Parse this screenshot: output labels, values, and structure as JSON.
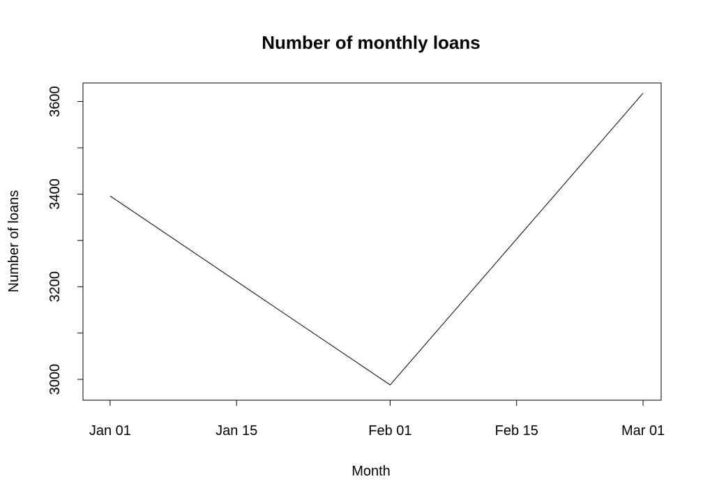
{
  "chart_data": {
    "type": "line",
    "title": "Number of monthly loans",
    "xlabel": "Month",
    "ylabel": "Number of loans",
    "x": [
      "2023-01-01",
      "2023-02-01",
      "2023-03-01"
    ],
    "series": [
      {
        "values": [
          3396,
          2988,
          3618
        ]
      }
    ],
    "xlim": [
      "2022-12-29",
      "2023-03-03"
    ],
    "ylim": [
      2955,
      3640
    ],
    "x_ticks": [
      {
        "date": "2023-01-01",
        "label": "Jan 01"
      },
      {
        "date": "2023-01-15",
        "label": "Jan 15"
      },
      {
        "date": "2023-02-01",
        "label": "Feb 01"
      },
      {
        "date": "2023-02-15",
        "label": "Feb 15"
      },
      {
        "date": "2023-03-01",
        "label": "Mar 01"
      }
    ],
    "y_ticks": [
      3000,
      3100,
      3200,
      3300,
      3400,
      3500,
      3600
    ],
    "y_tick_labels": [
      "3000",
      "",
      "3200",
      "",
      "3400",
      "",
      "3600"
    ],
    "grid": false,
    "line_color": "#000000"
  }
}
